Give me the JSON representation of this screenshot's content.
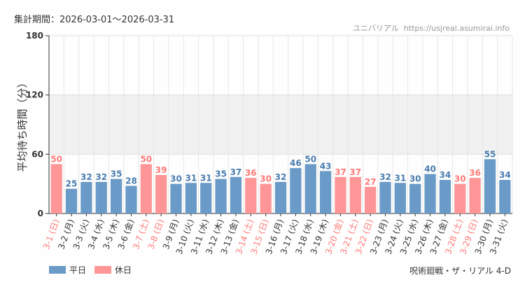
{
  "header": {
    "period_label": "集計期間：2026-03-01〜2026-03-31",
    "source": "ユニバリアル  https://usjreal.asumirai.info"
  },
  "attraction": "呪術廻戦・ザ・リアル 4-D",
  "colors": {
    "weekday": "#6a9bc8",
    "holiday": "#fe9697",
    "holiday_label": "#ff7a7a",
    "label": "#333333"
  },
  "chart_data": {
    "type": "bar",
    "ylabel": "平均待ち時間（分）",
    "ylim": [
      0,
      180
    ],
    "yticks": [
      0,
      60,
      120,
      180
    ],
    "grid": true,
    "legend_position": "bottom-left",
    "legend": [
      {
        "name": "平日",
        "key": "weekday"
      },
      {
        "name": "休日",
        "key": "holiday"
      }
    ],
    "categories": [
      "3-1 (日)",
      "3-2 (月)",
      "3-3 (火)",
      "3-4 (水)",
      "3-5 (木)",
      "3-6 (金)",
      "3-7 (土)",
      "3-8 (日)",
      "3-9 (月)",
      "3-10 (火)",
      "3-11 (水)",
      "3-12 (木)",
      "3-13 (金)",
      "3-14 (土)",
      "3-15 (日)",
      "3-16 (月)",
      "3-17 (火)",
      "3-18 (水)",
      "3-19 (木)",
      "3-20 (金)",
      "3-21 (土)",
      "3-22 (日)",
      "3-23 (月)",
      "3-24 (火)",
      "3-25 (水)",
      "3-26 (木)",
      "3-27 (金)",
      "3-28 (土)",
      "3-29 (日)",
      "3-30 (月)",
      "3-31 (火)"
    ],
    "values": [
      50,
      25,
      32,
      32,
      35,
      28,
      50,
      39,
      30,
      31,
      31,
      35,
      37,
      36,
      30,
      32,
      46,
      50,
      43,
      37,
      37,
      27,
      32,
      31,
      30,
      40,
      34,
      30,
      36,
      55,
      34
    ],
    "holiday": [
      true,
      false,
      false,
      false,
      false,
      false,
      true,
      true,
      false,
      false,
      false,
      false,
      false,
      true,
      true,
      false,
      false,
      false,
      false,
      true,
      true,
      true,
      false,
      false,
      false,
      false,
      false,
      true,
      true,
      false,
      false
    ]
  }
}
